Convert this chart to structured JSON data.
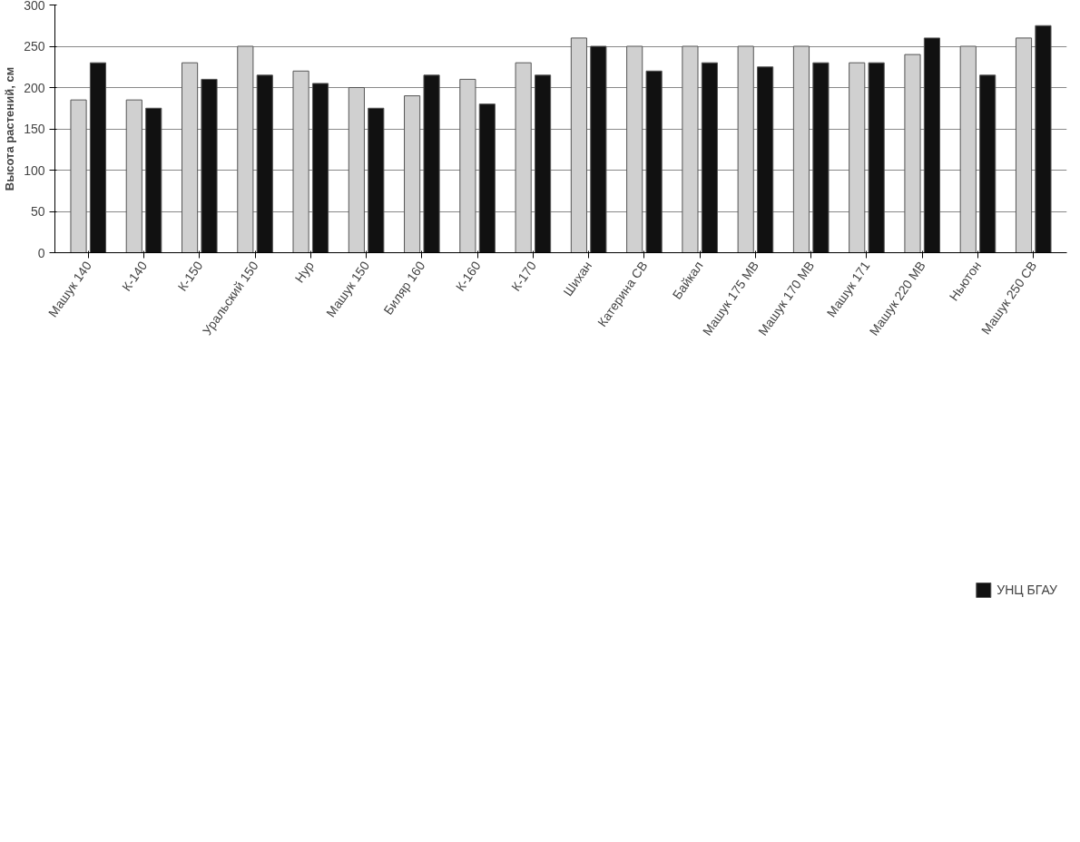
{
  "chart_data": {
    "type": "bar",
    "ylabel": "Высота растений, см",
    "categories": [
      "Машук 140",
      "К-140",
      "К-150",
      "Уральский 150",
      "Нур",
      "Машук 150",
      "Биляр 160",
      "К-160",
      "К-170",
      "Шихан",
      "Катерина СВ",
      "Байкал",
      "Машук 175 МВ",
      "Машук 170 МВ",
      "Машук 171",
      "Машук 220 МВ",
      "Ньютон",
      "Машук 250 СВ"
    ],
    "series": [
      {
        "color": "#d0d0d0",
        "values": [
          185,
          185,
          230,
          250,
          220,
          200,
          190,
          210,
          230,
          260,
          250,
          250,
          250,
          250,
          230,
          240,
          250,
          260
        ]
      },
      {
        "name": "УНЦ БГАУ",
        "color": "#111111",
        "values": [
          230,
          175,
          210,
          215,
          205,
          175,
          215,
          180,
          215,
          250,
          220,
          230,
          225,
          230,
          230,
          260,
          215,
          275
        ]
      }
    ],
    "ylim": [
      0,
      300
    ],
    "yticks": [
      0,
      50,
      100,
      150,
      200,
      250,
      300
    ],
    "grid": "y",
    "legend": "bottom"
  }
}
